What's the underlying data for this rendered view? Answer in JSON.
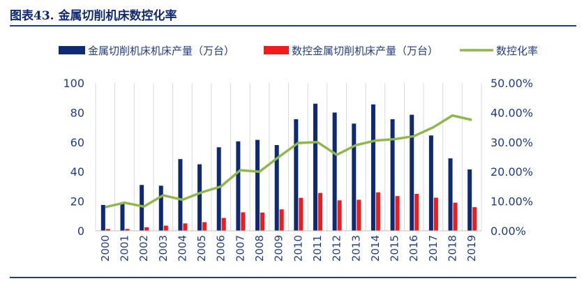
{
  "title": "图表43. 金属切削机床数控化率",
  "chart_data": {
    "type": "bar",
    "categories": [
      "2000",
      "2001",
      "2002",
      "2003",
      "2004",
      "2005",
      "2006",
      "2007",
      "2008",
      "2009",
      "2010",
      "2011",
      "2012",
      "2013",
      "2014",
      "2015",
      "2016",
      "2017",
      "2018",
      "2019"
    ],
    "series": [
      {
        "name": "金属切削机床机床产量（万台）",
        "type": "bar",
        "axis": "left",
        "color": "#0d2a73",
        "values": [
          17.5,
          18.5,
          31,
          30.5,
          48.5,
          45,
          56.5,
          60.5,
          61.5,
          58,
          75.5,
          86,
          80,
          72.5,
          85.5,
          75.5,
          78.5,
          64.5,
          49,
          41.5
        ]
      },
      {
        "name": "数控金属切削机床产量（万台）",
        "type": "bar",
        "axis": "left",
        "color": "#ee1c1c",
        "values": [
          1.2,
          1.3,
          2.4,
          3.5,
          5,
          5.8,
          8.7,
          12.5,
          12.3,
          14.5,
          22.3,
          25.6,
          20.6,
          21,
          26,
          23.5,
          25,
          22.4,
          19,
          16
        ]
      },
      {
        "name": "数控化率",
        "type": "line",
        "axis": "right",
        "color": "#8fb84a",
        "values": [
          8,
          9.5,
          8.2,
          12,
          10.5,
          13,
          15,
          20.5,
          20,
          25,
          29.7,
          30,
          25.7,
          29,
          30.5,
          31,
          32,
          35,
          39,
          37.5
        ]
      }
    ],
    "left_axis": {
      "ylim": [
        0,
        100
      ],
      "ticks": [
        0,
        20,
        40,
        60,
        80,
        100
      ],
      "tick_labels": [
        "0",
        "20",
        "40",
        "60",
        "80",
        "100"
      ]
    },
    "right_axis": {
      "ylim": [
        0,
        50
      ],
      "ticks": [
        0,
        10,
        20,
        30,
        40,
        50
      ],
      "tick_labels": [
        "0.00%",
        "10.00%",
        "20.00%",
        "30.00%",
        "40.00%",
        "50.00%"
      ]
    },
    "grid": "vertical",
    "legend": "top"
  }
}
